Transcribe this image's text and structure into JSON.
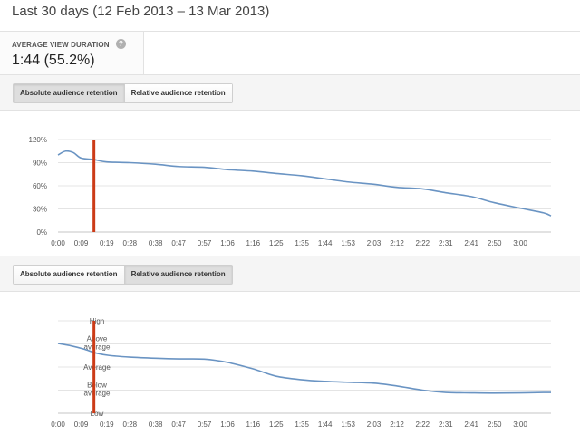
{
  "header": {
    "date_range": "Last 30 days (12 Feb 2013 – 13 Mar 2013)"
  },
  "metric": {
    "label": "AVERAGE VIEW DURATION",
    "value": "1:44 (55.2%)",
    "help_icon": "question-mark-icon",
    "help_glyph": "?"
  },
  "toggles": {
    "absolute_label": "Absolute audience retention",
    "relative_label": "Relative audience retention"
  },
  "colors": {
    "line": "#6a94c3",
    "marker": "#cc3b17",
    "grid": "#e4e4e4",
    "axis": "#c4c4c4"
  },
  "chart_data": [
    {
      "type": "line",
      "title": "Absolute audience retention",
      "x_tick_labels": [
        "0:00",
        "0:09",
        "0:19",
        "0:28",
        "0:38",
        "0:47",
        "0:57",
        "1:06",
        "1:16",
        "1:25",
        "1:35",
        "1:44",
        "1:53",
        "2:03",
        "2:12",
        "2:22",
        "2:31",
        "2:41",
        "2:50",
        "3:00"
      ],
      "y_tick_labels": [
        "120%",
        "90%",
        "60%",
        "30%",
        "0%"
      ],
      "ylim": [
        0,
        120
      ],
      "marker_x_seconds": 14,
      "series": [
        {
          "x": [
            0,
            3,
            6,
            9,
            14,
            19,
            28,
            38,
            47,
            57,
            66,
            76,
            85,
            95,
            104,
            113,
            123,
            132,
            142,
            151,
            161,
            170,
            180,
            189,
            192
          ],
          "values": [
            100,
            105,
            103,
            96,
            94,
            91,
            90,
            88,
            85,
            84,
            81,
            79,
            76,
            73,
            69,
            65,
            62,
            58,
            56,
            51,
            46,
            38,
            31,
            25,
            21
          ]
        }
      ]
    },
    {
      "type": "line",
      "title": "Relative audience retention",
      "x_tick_labels": [
        "0:00",
        "0:09",
        "0:19",
        "0:28",
        "0:38",
        "0:47",
        "0:57",
        "1:06",
        "1:16",
        "1:25",
        "1:35",
        "1:44",
        "1:53",
        "2:03",
        "2:12",
        "2:22",
        "2:31",
        "2:41",
        "2:50",
        "3:00"
      ],
      "y_tick_labels": [
        "High",
        "Above\naverage",
        "Average",
        "Below\naverage",
        "Low"
      ],
      "ylim": [
        0,
        4
      ],
      "marker_x_seconds": 14,
      "series": [
        {
          "x": [
            0,
            5,
            10,
            15,
            20,
            28,
            38,
            47,
            57,
            66,
            76,
            85,
            95,
            104,
            113,
            123,
            132,
            142,
            151,
            161,
            170,
            180,
            189,
            192
          ],
          "values": [
            3.02,
            2.92,
            2.78,
            2.6,
            2.5,
            2.43,
            2.38,
            2.35,
            2.34,
            2.2,
            1.92,
            1.6,
            1.45,
            1.38,
            1.34,
            1.3,
            1.18,
            1.0,
            0.9,
            0.88,
            0.87,
            0.88,
            0.9,
            0.9
          ]
        }
      ]
    }
  ]
}
